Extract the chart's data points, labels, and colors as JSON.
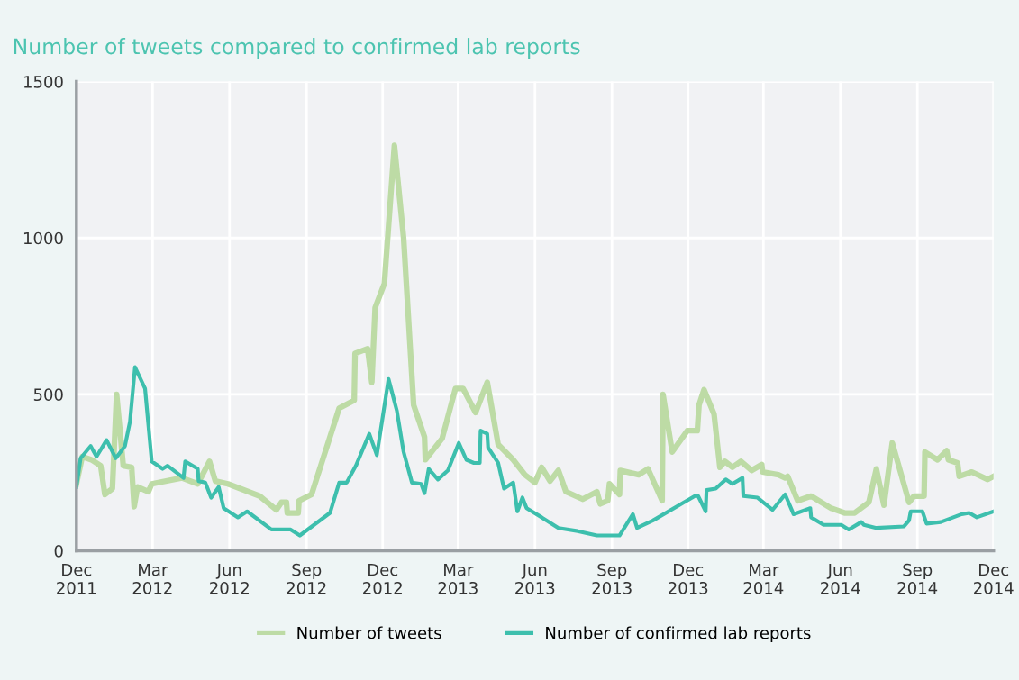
{
  "chart_data": {
    "type": "line",
    "title": "Number of tweets compared to confirmed lab reports",
    "xlim": [
      "2011-12-01",
      "2014-12-01"
    ],
    "ylim": [
      0,
      1500
    ],
    "yticks": [
      0,
      500,
      1000,
      1500
    ],
    "xticks": [
      {
        "value": "2011-12-01",
        "label": "Dec\n2011"
      },
      {
        "value": "2012-03-01",
        "label": "Mar\n2012"
      },
      {
        "value": "2012-06-01",
        "label": "Jun\n2012"
      },
      {
        "value": "2012-09-01",
        "label": "Sep\n2012"
      },
      {
        "value": "2012-12-01",
        "label": "Dec\n2012"
      },
      {
        "value": "2013-03-01",
        "label": "Mar\n2013"
      },
      {
        "value": "2013-06-01",
        "label": "Jun\n2013"
      },
      {
        "value": "2013-09-01",
        "label": "Sep\n2013"
      },
      {
        "value": "2013-12-01",
        "label": "Dec\n2013"
      },
      {
        "value": "2014-03-01",
        "label": "Mar\n2014"
      },
      {
        "value": "2014-06-01",
        "label": "Jun\n2014"
      },
      {
        "value": "2014-09-01",
        "label": "Sep\n2014"
      },
      {
        "value": "2014-12-01",
        "label": "Dec\n2014"
      }
    ],
    "grid": true,
    "legend": "bottom",
    "marker": "none",
    "line_style": "solid",
    "series": [
      {
        "name": "Number of tweets",
        "color": "#bddba5",
        "x": [
          "2011-12-01",
          "2011-12-08",
          "2011-12-19",
          "2011-12-30",
          "2012-01-04",
          "2012-01-13",
          "2012-01-18",
          "2012-01-26",
          "2012-02-05",
          "2012-02-08",
          "2012-02-12",
          "2012-02-25",
          "2012-02-29",
          "2012-04-05",
          "2012-04-24",
          "2012-05-08",
          "2012-05-15",
          "2012-05-30",
          "2012-07-07",
          "2012-07-27",
          "2012-08-02",
          "2012-08-08",
          "2012-08-09",
          "2012-08-22",
          "2012-08-23",
          "2012-09-07",
          "2012-10-10",
          "2012-10-28",
          "2012-10-29",
          "2012-11-13",
          "2012-11-18",
          "2012-11-22",
          "2012-12-03",
          "2012-12-15",
          "2012-12-26",
          "2013-01-07",
          "2013-01-20",
          "2013-01-21",
          "2013-02-10",
          "2013-02-26",
          "2013-03-07",
          "2013-03-22",
          "2013-04-05",
          "2013-04-18",
          "2013-05-06",
          "2013-05-20",
          "2013-06-01",
          "2013-06-09",
          "2013-06-19",
          "2013-06-29",
          "2013-07-08",
          "2013-07-28",
          "2013-08-14",
          "2013-08-18",
          "2013-08-27",
          "2013-08-29",
          "2013-09-10",
          "2013-09-11",
          "2013-10-03",
          "2013-10-14",
          "2013-10-31",
          "2013-11-01",
          "2013-11-12",
          "2013-11-30",
          "2013-12-12",
          "2013-12-14",
          "2013-12-20",
          "2014-01-01",
          "2014-01-08",
          "2014-01-14",
          "2014-01-23",
          "2014-02-02",
          "2014-02-15",
          "2014-02-27",
          "2014-02-28",
          "2014-03-19",
          "2014-03-27",
          "2014-03-30",
          "2014-04-11",
          "2014-04-27",
          "2014-05-21",
          "2014-06-06",
          "2014-06-18",
          "2014-07-05",
          "2014-07-14",
          "2014-07-23",
          "2014-08-02",
          "2014-08-22",
          "2014-08-28",
          "2014-09-09",
          "2014-09-10",
          "2014-09-25",
          "2014-10-06",
          "2014-10-08",
          "2014-10-19",
          "2014-10-21",
          "2014-11-05",
          "2014-11-24",
          "2014-12-01"
        ],
        "values": [
          214,
          301,
          291,
          272,
          180,
          199,
          500,
          272,
          267,
          141,
          204,
          189,
          214,
          233,
          214,
          286,
          223,
          214,
          175,
          131,
          155,
          155,
          121,
          121,
          160,
          180,
          456,
          481,
          631,
          646,
          539,
          777,
          854,
          1296,
          1000,
          466,
          364,
          291,
          359,
          519,
          519,
          442,
          539,
          340,
          291,
          243,
          218,
          267,
          223,
          257,
          189,
          165,
          189,
          150,
          160,
          214,
          180,
          257,
          243,
          262,
          160,
          500,
          316,
          384,
          384,
          466,
          515,
          437,
          267,
          286,
          267,
          286,
          257,
          276,
          252,
          243,
          233,
          238,
          160,
          175,
          136,
          121,
          121,
          155,
          262,
          146,
          345,
          155,
          175,
          175,
          316,
          291,
          320,
          291,
          281,
          238,
          252,
          228,
          238
        ]
      },
      {
        "name": "Number of confirmed lab reports",
        "color": "#3dbfad",
        "x": [
          "2011-12-01",
          "2011-12-06",
          "2011-12-18",
          "2011-12-25",
          "2012-01-06",
          "2012-01-17",
          "2012-01-28",
          "2012-02-03",
          "2012-02-09",
          "2012-02-21",
          "2012-02-29",
          "2012-03-13",
          "2012-03-19",
          "2012-04-07",
          "2012-04-09",
          "2012-04-24",
          "2012-04-25",
          "2012-05-03",
          "2012-05-10",
          "2012-05-19",
          "2012-05-25",
          "2012-06-11",
          "2012-06-22",
          "2012-07-21",
          "2012-08-13",
          "2012-08-24",
          "2012-09-29",
          "2012-10-10",
          "2012-10-19",
          "2012-10-30",
          "2012-11-15",
          "2012-11-24",
          "2012-12-08",
          "2012-12-18",
          "2012-12-26",
          "2013-01-05",
          "2013-01-16",
          "2013-01-20",
          "2013-01-25",
          "2013-02-05",
          "2013-02-17",
          "2013-03-02",
          "2013-03-11",
          "2013-03-20",
          "2013-03-27",
          "2013-03-28",
          "2013-04-05",
          "2013-04-06",
          "2013-04-18",
          "2013-04-25",
          "2013-05-06",
          "2013-05-11",
          "2013-05-17",
          "2013-05-22",
          "2013-06-09",
          "2013-06-29",
          "2013-07-22",
          "2013-08-14",
          "2013-09-10",
          "2013-09-26",
          "2013-10-01",
          "2013-10-20",
          "2013-12-09",
          "2013-12-13",
          "2013-12-22",
          "2013-12-23",
          "2014-01-03",
          "2014-01-15",
          "2014-01-23",
          "2014-02-04",
          "2014-02-05",
          "2014-02-22",
          "2014-03-12",
          "2014-03-27",
          "2014-04-06",
          "2014-04-26",
          "2014-04-27",
          "2014-05-12",
          "2014-06-02",
          "2014-06-11",
          "2014-06-26",
          "2014-06-29",
          "2014-07-14",
          "2014-08-16",
          "2014-08-22",
          "2014-08-24",
          "2014-09-07",
          "2014-09-12",
          "2014-09-29",
          "2014-10-24",
          "2014-11-02",
          "2014-11-11",
          "2014-12-01"
        ],
        "values": [
          204,
          296,
          335,
          301,
          354,
          296,
          335,
          413,
          587,
          519,
          286,
          262,
          272,
          233,
          286,
          262,
          223,
          218,
          170,
          204,
          136,
          107,
          126,
          68,
          68,
          49,
          121,
          218,
          218,
          272,
          374,
          306,
          549,
          447,
          316,
          218,
          214,
          184,
          262,
          228,
          257,
          345,
          291,
          281,
          281,
          384,
          374,
          330,
          281,
          199,
          218,
          126,
          170,
          136,
          107,
          73,
          63,
          49,
          49,
          117,
          73,
          97,
          175,
          175,
          126,
          194,
          199,
          228,
          214,
          233,
          175,
          170,
          131,
          180,
          117,
          136,
          107,
          83,
          83,
          68,
          92,
          83,
          73,
          78,
          97,
          126,
          126,
          87,
          92,
          117,
          121,
          107,
          126
        ]
      }
    ]
  }
}
